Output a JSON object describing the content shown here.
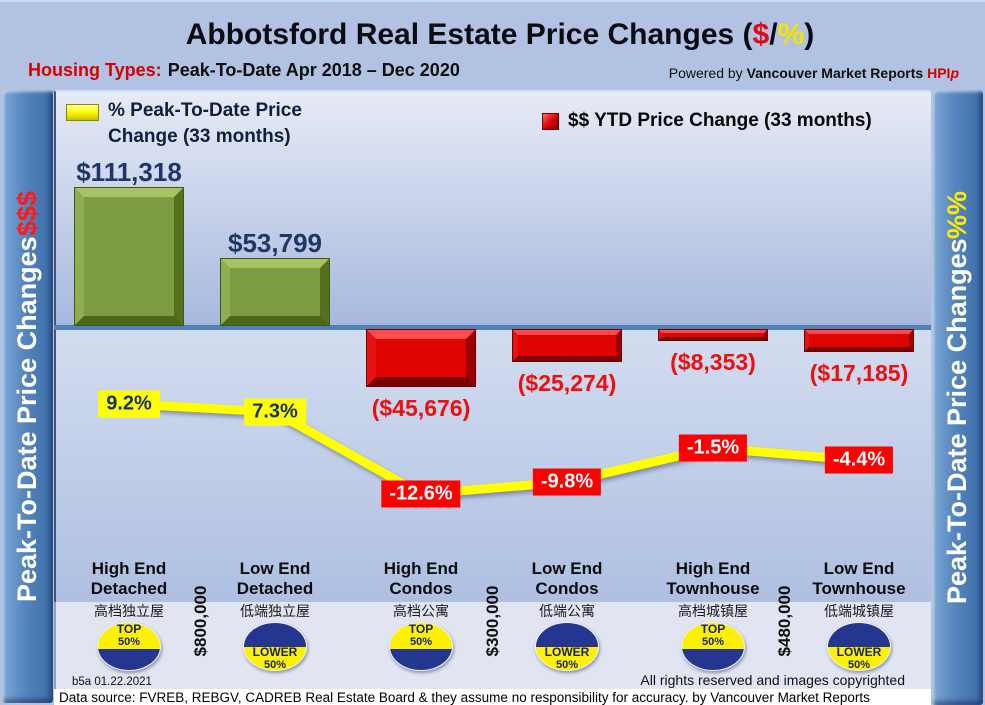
{
  "title": {
    "prefix": "Abbotsford Real Estate Price Changes (",
    "dollar": "$",
    "slash": "/",
    "percent": "%",
    "suffix": ")"
  },
  "subtitle": {
    "label": "Housing Types:",
    "text": "Peak-To-Date Apr 2018 – Dec 2020"
  },
  "powered_by": {
    "prefix": "Powered by ",
    "brand": "Vancouver Market Reports ",
    "hpi": "HPI",
    "hpi_p": "p"
  },
  "left_rail": {
    "text": "Peak-To-Date Price Changes ",
    "accent": "$$$"
  },
  "right_rail": {
    "text": "Peak-To-Date  Price  Changes  ",
    "accent": "%%"
  },
  "legend": {
    "pct_label": "% Peak-To-Date Price Change (33 months)",
    "usd_label": "$$ YTD Price Change (33 months)"
  },
  "chart_data": {
    "type": "bar",
    "subtype": "combo-bar-line",
    "legend_position": "top",
    "zero_line": true,
    "categories": [
      {
        "en": [
          "High End",
          "Detached"
        ],
        "zh": "高档独立屋",
        "badge": "top"
      },
      {
        "en": [
          "Low End",
          "Detached"
        ],
        "zh": "低端独立屋",
        "badge": "lower"
      },
      {
        "en": [
          "High End",
          "Condos"
        ],
        "zh": "高档公寓",
        "badge": "top"
      },
      {
        "en": [
          "Low End",
          "Condos"
        ],
        "zh": "低端公寓",
        "badge": "lower"
      },
      {
        "en": [
          "High End",
          "Townhouse"
        ],
        "zh": "高档城镇屋",
        "badge": "top"
      },
      {
        "en": [
          "Low End",
          "Townhouse"
        ],
        "zh": "低端城镇屋",
        "badge": "lower"
      }
    ],
    "series": [
      {
        "name": "$$ YTD Price Change (33 months)",
        "type": "bar",
        "values": [
          111318,
          53799,
          -45676,
          -25274,
          -8353,
          -17185
        ],
        "labels": [
          "$111,318",
          "$53,799",
          "($45,676)",
          "($25,274)",
          "($8,353)",
          "($17,185)"
        ],
        "positive_color": "#7d9c42",
        "negative_color": "#e00400"
      },
      {
        "name": "% Peak-To-Date Price Change (33 months)",
        "type": "line",
        "values": [
          9.2,
          7.3,
          -12.6,
          -9.8,
          -1.5,
          -4.4
        ],
        "labels": [
          "9.2%",
          "7.3%",
          "-12.6%",
          "-9.8%",
          "-1.5%",
          "-4.4%"
        ],
        "color": "#ffff00"
      }
    ],
    "price_dividers": [
      {
        "label": "$800,000",
        "after_index": 0
      },
      {
        "label": "$300,000",
        "after_index": 2
      },
      {
        "label": "$480,000",
        "after_index": 4
      }
    ],
    "badges": {
      "top": [
        "TOP",
        "50%"
      ],
      "lower": [
        "LOWER",
        "50%"
      ]
    },
    "colors": {
      "navy_label": "#1e3766",
      "red_label": "#f20d0d",
      "pct_pos_bg": "#ffff00",
      "pct_neg_bg": "#fe0000",
      "zero_line": "#4f81bd"
    }
  },
  "footer": {
    "version": "b5a 01.22.2021",
    "rights": "All rights reserved and  images copyrighted",
    "datasource": "Data source: FVREB, REBGV, CADREB Real Estate Board & they assume no responsibility for accuracy. by Vancouver Market Reports"
  }
}
